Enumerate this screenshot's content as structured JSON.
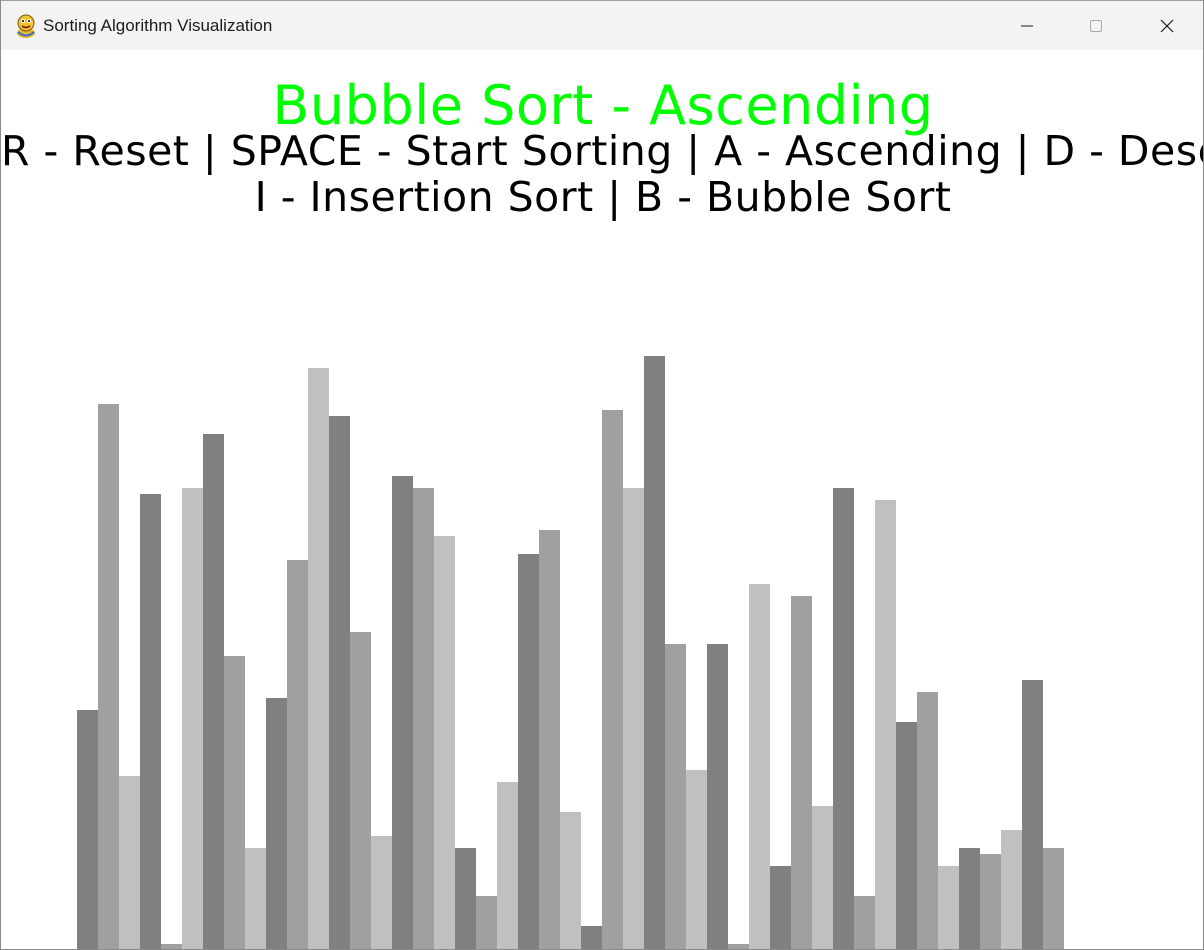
{
  "window": {
    "title": "Sorting Algorithm Visualization",
    "icon": "python-snake-icon"
  },
  "controls": {
    "minimize_icon": "minimize-icon",
    "maximize_icon": "maximize-icon",
    "close_icon": "close-icon"
  },
  "header": {
    "title": "Bubble Sort - Ascending",
    "title_color": "#00ff00",
    "instructions_line1": "R - Reset | SPACE - Start Sorting | A - Ascending | D - Descending",
    "instructions_line2": "I - Insertion Sort | B - Bubble Sort"
  },
  "chart_data": {
    "type": "bar",
    "values": [
      40,
      91,
      29,
      76,
      1,
      77,
      86,
      49,
      17,
      42,
      65,
      97,
      89,
      53,
      19,
      79,
      77,
      69,
      17,
      9,
      28,
      66,
      70,
      23,
      4,
      90,
      77,
      99,
      51,
      30,
      51,
      0,
      61,
      14,
      59,
      24,
      77,
      9,
      75,
      38,
      43,
      14,
      17,
      16,
      20,
      45,
      17
    ],
    "shades": [
      "#808080",
      "#a0a0a0",
      "#c0c0c0"
    ],
    "ylim": [
      0,
      100
    ]
  }
}
